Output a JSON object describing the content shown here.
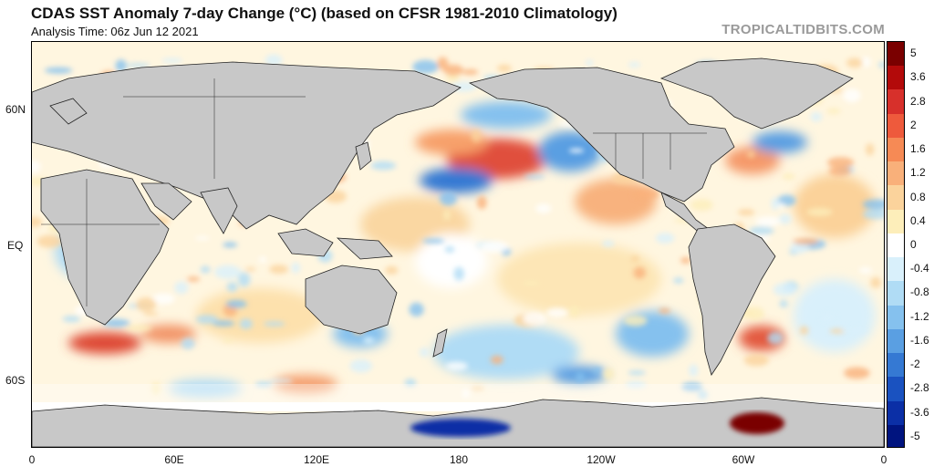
{
  "header": {
    "title": "CDAS SST Anomaly 7-day Change (°C) (based on CFSR 1981-2010 Climatology)",
    "subtitle": "Analysis Time: 06z Jun 12 2021",
    "brand": "TROPICALTIDBITS.COM"
  },
  "axes": {
    "lat_labels": [
      "60N",
      "EQ",
      "60S"
    ],
    "lon_labels": [
      "0",
      "60E",
      "120E",
      "180",
      "120W",
      "60W",
      "0"
    ]
  },
  "colorbar": {
    "labels": [
      "5",
      "3.6",
      "2.8",
      "2",
      "1.6",
      "1.2",
      "0.8",
      "0.4",
      "0",
      "-0.4",
      "-0.8",
      "-1.2",
      "-1.6",
      "-2",
      "-2.8",
      "-3.6",
      "-5"
    ],
    "colors": [
      "#7a0000",
      "#b30a0a",
      "#d7302b",
      "#ee5a3c",
      "#f68a55",
      "#f9b07a",
      "#fbd39c",
      "#fdeeba",
      "#ffffff",
      "#d9f0fb",
      "#b0dcf5",
      "#85c1ee",
      "#5a9fe2",
      "#3579d3",
      "#1a52c0",
      "#0b2fa6",
      "#00147f"
    ]
  },
  "icons": {
    "land": "gray-landmass",
    "ice": "white-sea-ice"
  }
}
